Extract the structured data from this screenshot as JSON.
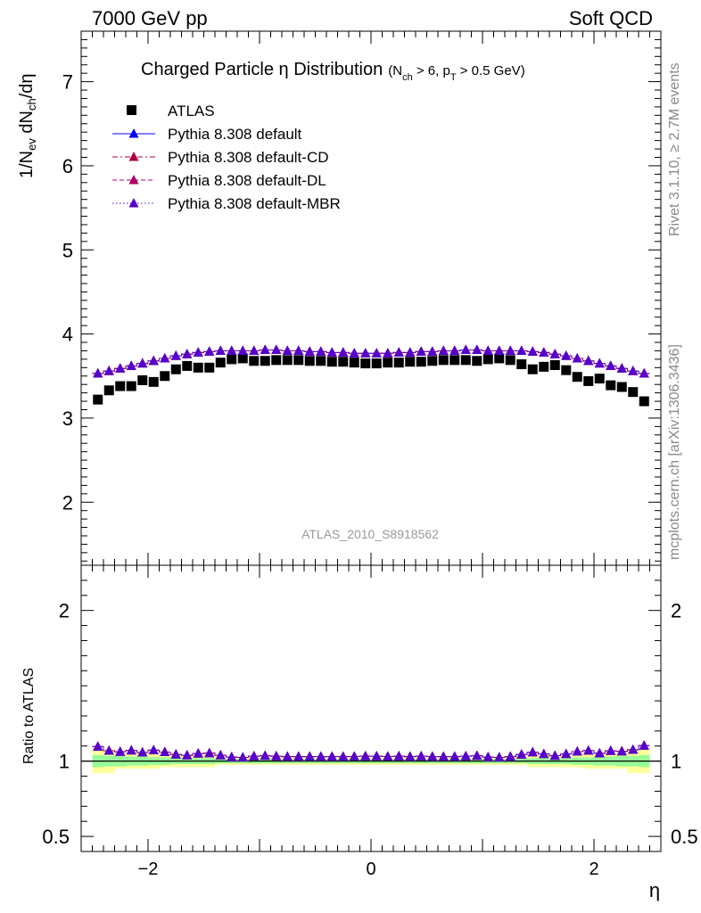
{
  "header": {
    "left": "7000 GeV pp",
    "right": "Soft QCD"
  },
  "side_labels": {
    "rivet": "Rivet 3.1.10, ≥ 2.7M events",
    "mcplots": "mcplots.cern.ch [arXiv:1306.3436]"
  },
  "title": {
    "main": "Charged Particle η Distribution",
    "cuts": {
      "open": "(N",
      "nch_sub": "ch",
      "mid": " > 6, p",
      "pt_sub": "T",
      "close": " > 0.5 GeV)"
    }
  },
  "axes": {
    "ylabel_upper": {
      "a": "1/N",
      "a_sub": "ev",
      "b": " dN",
      "b_sub": "ch",
      "c": "/dη"
    },
    "ylabel_lower": "Ratio to ATLAS",
    "xlabel": "η"
  },
  "analysis_label": "ATLAS_2010_S8918562",
  "colors": {
    "data": "#000000",
    "default": "#0000ff",
    "cd": "#aa0044",
    "dl": "#aa0066",
    "mbr": "#5500cc",
    "band_inner": "#98fb98",
    "band_outer": "#ffff99"
  },
  "chart_data": {
    "type": "scatter",
    "x_edges": [
      -2.5,
      -2.4,
      -2.3,
      -2.2,
      -2.1,
      -2.0,
      -1.9,
      -1.8,
      -1.7,
      -1.6,
      -1.5,
      -1.4,
      -1.3,
      -1.2,
      -1.1,
      -1.0,
      -0.9,
      -0.8,
      -0.7,
      -0.6,
      -0.5,
      -0.4,
      -0.3,
      -0.2,
      -0.1,
      0.0,
      0.1,
      0.2,
      0.3,
      0.4,
      0.5,
      0.6,
      0.7,
      0.8,
      0.9,
      1.0,
      1.1,
      1.2,
      1.3,
      1.4,
      1.5,
      1.6,
      1.7,
      1.8,
      1.9,
      2.0,
      2.1,
      2.2,
      2.3,
      2.4,
      2.5
    ],
    "x": [
      -2.45,
      -2.35,
      -2.25,
      -2.15,
      -2.05,
      -1.95,
      -1.85,
      -1.75,
      -1.65,
      -1.55,
      -1.45,
      -1.35,
      -1.25,
      -1.15,
      -1.05,
      -0.95,
      -0.85,
      -0.75,
      -0.65,
      -0.55,
      -0.45,
      -0.35,
      -0.25,
      -0.15,
      -0.05,
      0.05,
      0.15,
      0.25,
      0.35,
      0.45,
      0.55,
      0.65,
      0.75,
      0.85,
      0.95,
      1.05,
      1.15,
      1.25,
      1.35,
      1.45,
      1.55,
      1.65,
      1.75,
      1.85,
      1.95,
      2.05,
      2.15,
      2.25,
      2.35,
      2.45
    ],
    "xlim": [
      -2.6,
      2.6
    ],
    "ylim_upper": [
      1.25,
      7.6
    ],
    "ylim_lower": [
      0.4,
      2.3
    ],
    "x_ticks": [
      -2,
      0,
      2
    ],
    "y_ticks_upper": [
      2,
      3,
      4,
      5,
      6,
      7
    ],
    "y_ticks_lower": [
      0.5,
      1,
      2
    ],
    "series": [
      {
        "name": "ATLAS",
        "role": "data",
        "marker": "square",
        "values": [
          3.22,
          3.33,
          3.38,
          3.38,
          3.45,
          3.43,
          3.5,
          3.58,
          3.62,
          3.6,
          3.6,
          3.66,
          3.7,
          3.71,
          3.68,
          3.68,
          3.69,
          3.69,
          3.69,
          3.68,
          3.68,
          3.67,
          3.67,
          3.66,
          3.65,
          3.65,
          3.66,
          3.66,
          3.67,
          3.67,
          3.68,
          3.69,
          3.69,
          3.69,
          3.68,
          3.7,
          3.71,
          3.69,
          3.64,
          3.58,
          3.61,
          3.63,
          3.57,
          3.49,
          3.44,
          3.47,
          3.39,
          3.37,
          3.31,
          3.2
        ]
      },
      {
        "name": "Pythia 8.308 default",
        "role": "default",
        "marker": "triangle",
        "line": "solid",
        "values": [
          3.53,
          3.56,
          3.59,
          3.62,
          3.65,
          3.68,
          3.71,
          3.74,
          3.76,
          3.78,
          3.79,
          3.8,
          3.8,
          3.8,
          3.8,
          3.81,
          3.81,
          3.8,
          3.8,
          3.79,
          3.79,
          3.78,
          3.78,
          3.77,
          3.77,
          3.77,
          3.77,
          3.78,
          3.78,
          3.79,
          3.79,
          3.8,
          3.8,
          3.81,
          3.81,
          3.8,
          3.8,
          3.8,
          3.8,
          3.79,
          3.78,
          3.76,
          3.74,
          3.71,
          3.68,
          3.65,
          3.62,
          3.59,
          3.56,
          3.53
        ]
      },
      {
        "name": "Pythia 8.308 default-CD",
        "role": "cd",
        "marker": "triangle",
        "line": "dashdot",
        "values": [
          3.53,
          3.56,
          3.59,
          3.62,
          3.65,
          3.68,
          3.71,
          3.74,
          3.76,
          3.78,
          3.79,
          3.8,
          3.8,
          3.8,
          3.8,
          3.81,
          3.81,
          3.8,
          3.8,
          3.79,
          3.79,
          3.78,
          3.78,
          3.77,
          3.77,
          3.77,
          3.77,
          3.78,
          3.78,
          3.79,
          3.79,
          3.8,
          3.8,
          3.81,
          3.81,
          3.8,
          3.8,
          3.8,
          3.8,
          3.79,
          3.78,
          3.76,
          3.74,
          3.71,
          3.68,
          3.65,
          3.62,
          3.59,
          3.56,
          3.53
        ]
      },
      {
        "name": "Pythia 8.308 default-DL",
        "role": "dl",
        "marker": "triangle",
        "line": "dashed",
        "values": [
          3.53,
          3.56,
          3.59,
          3.62,
          3.65,
          3.68,
          3.71,
          3.74,
          3.76,
          3.78,
          3.79,
          3.8,
          3.8,
          3.8,
          3.8,
          3.81,
          3.81,
          3.8,
          3.8,
          3.79,
          3.79,
          3.78,
          3.78,
          3.77,
          3.77,
          3.77,
          3.77,
          3.78,
          3.78,
          3.79,
          3.79,
          3.8,
          3.8,
          3.81,
          3.81,
          3.8,
          3.8,
          3.8,
          3.8,
          3.79,
          3.78,
          3.76,
          3.74,
          3.71,
          3.68,
          3.65,
          3.62,
          3.59,
          3.56,
          3.53
        ]
      },
      {
        "name": "Pythia 8.308 default-MBR",
        "role": "mbr",
        "marker": "triangle",
        "line": "dotted",
        "values": [
          3.53,
          3.56,
          3.59,
          3.62,
          3.65,
          3.68,
          3.71,
          3.74,
          3.76,
          3.78,
          3.79,
          3.8,
          3.8,
          3.8,
          3.8,
          3.81,
          3.81,
          3.8,
          3.8,
          3.79,
          3.79,
          3.78,
          3.78,
          3.77,
          3.77,
          3.77,
          3.77,
          3.78,
          3.78,
          3.79,
          3.79,
          3.8,
          3.8,
          3.81,
          3.81,
          3.8,
          3.8,
          3.8,
          3.8,
          3.79,
          3.78,
          3.76,
          3.74,
          3.71,
          3.68,
          3.65,
          3.62,
          3.59,
          3.56,
          3.53
        ]
      }
    ],
    "ratio_band": {
      "inner": [
        0.04,
        0.035,
        0.035,
        0.03,
        0.03,
        0.025,
        0.025,
        0.02,
        0.02,
        0.02,
        0.02,
        0.015,
        0.015,
        0.015,
        0.015,
        0.015,
        0.015,
        0.015,
        0.015,
        0.015,
        0.015,
        0.015,
        0.015,
        0.015,
        0.015,
        0.015,
        0.015,
        0.015,
        0.015,
        0.015,
        0.015,
        0.015,
        0.015,
        0.015,
        0.015,
        0.015,
        0.015,
        0.015,
        0.015,
        0.02,
        0.02,
        0.02,
        0.02,
        0.025,
        0.025,
        0.03,
        0.03,
        0.035,
        0.035,
        0.04
      ],
      "outer": [
        0.08,
        0.08,
        0.05,
        0.05,
        0.05,
        0.05,
        0.04,
        0.04,
        0.04,
        0.04,
        0.04,
        0.025,
        0.025,
        0.025,
        0.025,
        0.025,
        0.025,
        0.025,
        0.025,
        0.025,
        0.025,
        0.025,
        0.025,
        0.025,
        0.025,
        0.025,
        0.025,
        0.025,
        0.025,
        0.025,
        0.025,
        0.025,
        0.025,
        0.025,
        0.025,
        0.025,
        0.025,
        0.025,
        0.025,
        0.04,
        0.04,
        0.04,
        0.04,
        0.04,
        0.05,
        0.05,
        0.05,
        0.05,
        0.08,
        0.08
      ]
    },
    "legend_placement": "top-left"
  }
}
